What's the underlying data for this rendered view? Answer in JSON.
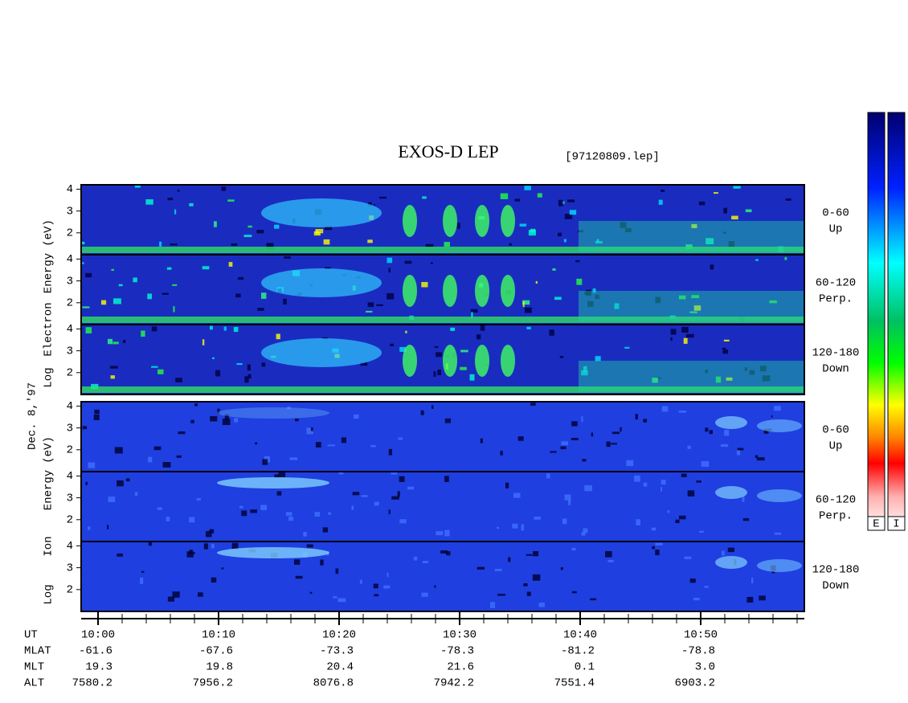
{
  "chart_data": {
    "type": "spectrogram",
    "title": "EXOS-D LEP",
    "file": "[97120809.lep]",
    "date": "Dec. 8,'97",
    "xlim": [
      -1.4,
      58.6
    ],
    "xticks": [
      {
        "value": 0,
        "label": "10:00"
      },
      {
        "value": 10,
        "label": "10:10"
      },
      {
        "value": 20,
        "label": "10:20"
      },
      {
        "value": 30,
        "label": "10:30"
      },
      {
        "value": 40,
        "label": "10:40"
      },
      {
        "value": 50,
        "label": "10:50"
      }
    ],
    "ylim": [
      1,
      4.2
    ],
    "yticks": [
      2,
      3,
      4
    ],
    "groups": [
      {
        "axis_words": [
          "Log",
          "Electron",
          "Energy",
          "(eV)"
        ],
        "color": "#1a2cc0",
        "panels": [
          [
            "0-60",
            "Up"
          ],
          [
            "60-120",
            "Perp."
          ],
          [
            "120-180",
            "Down"
          ]
        ]
      },
      {
        "axis_words": [
          "Log",
          "Ion",
          "Energy",
          "(eV)"
        ],
        "color": "#1f3fe0",
        "panels": [
          [
            "0-60",
            "Up"
          ],
          [
            "60-120",
            "Perp."
          ],
          [
            "120-180",
            "Down"
          ]
        ]
      }
    ],
    "time_label": "UT",
    "ephemeris": [
      {
        "name": "MLAT",
        "values": [
          "-61.6",
          "-67.6",
          "-73.3",
          "-78.3",
          "-81.2",
          "-78.8"
        ]
      },
      {
        "name": "MLT",
        "values": [
          "19.3",
          "19.8",
          "20.4",
          "21.6",
          "0.1",
          "3.0"
        ]
      },
      {
        "name": "ALT",
        "values": [
          "7580.2",
          "7956.2",
          "8076.8",
          "7942.2",
          "7551.4",
          "6903.2"
        ]
      }
    ],
    "colorbars": [
      "E",
      "I"
    ]
  }
}
